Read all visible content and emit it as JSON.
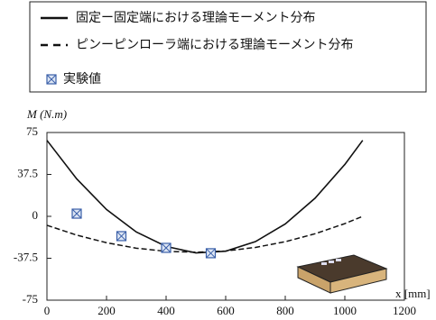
{
  "chart_data": {
    "type": "line",
    "y_label": "M (N.m)",
    "x_label": "x [mm]",
    "xlim": [
      0,
      1200
    ],
    "xticks": [
      0,
      200,
      400,
      600,
      800,
      1000,
      1200
    ],
    "ylim": [
      -75,
      75
    ],
    "yticks": [
      75,
      37.5,
      0,
      -37.5,
      -75
    ],
    "series": [
      {
        "name": "固定ー固定端における理論モーメント分布",
        "style": "solid",
        "color": "#111111",
        "x": [
          0,
          100,
          200,
          300,
          400,
          500,
          600,
          700,
          800,
          900,
          1000,
          1060
        ],
        "values": [
          68,
          33.5,
          6.1,
          -14,
          -26.9,
          -32.7,
          -31.2,
          -22.6,
          -6.8,
          16.2,
          46.4,
          68
        ]
      },
      {
        "name": "ピンーピンローラ端における理論モーメント分布",
        "style": "dashed",
        "color": "#111111",
        "x": [
          0,
          100,
          200,
          300,
          400,
          500,
          600,
          700,
          800,
          900,
          1000,
          1060
        ],
        "values": [
          -8,
          -16.8,
          -23.6,
          -28.5,
          -31.3,
          -32.1,
          -31,
          -27.8,
          -22.7,
          -15.6,
          -6.5,
          0
        ]
      },
      {
        "name": "実験値",
        "style": "marker",
        "color": "#3a5fa8",
        "x": [
          100,
          250,
          400,
          550
        ],
        "values": [
          2.4,
          -17.7,
          -28.2,
          -33
        ]
      }
    ]
  }
}
